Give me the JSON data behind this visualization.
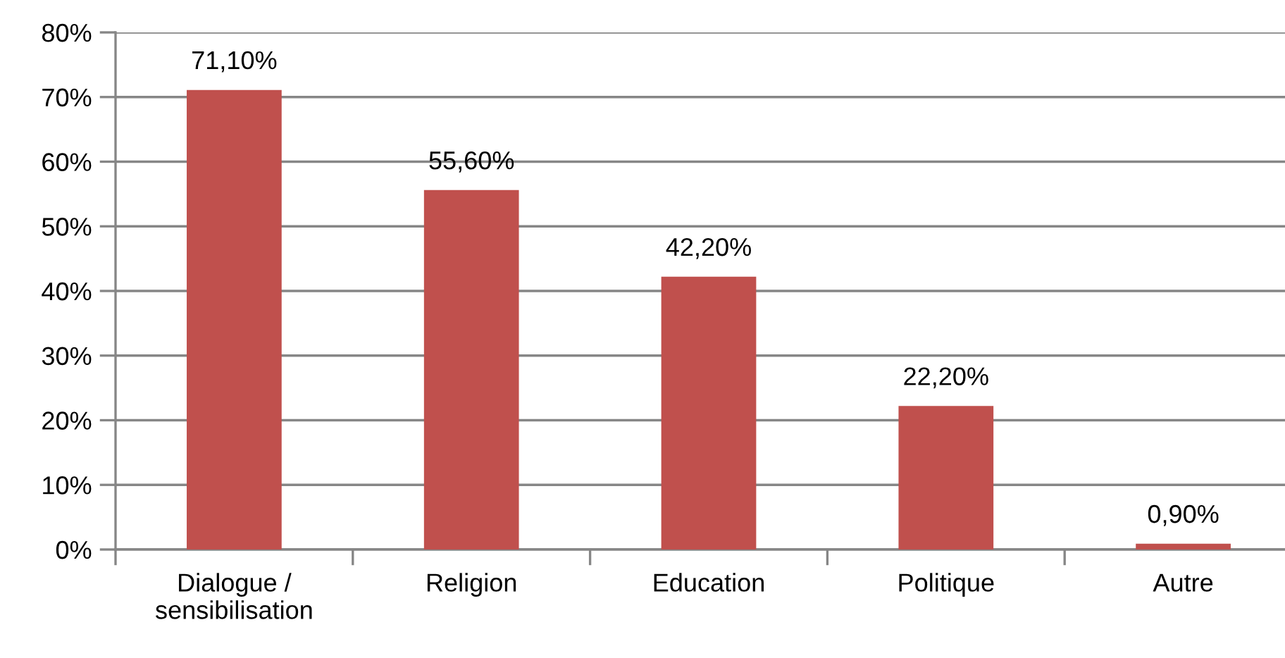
{
  "chart_data": {
    "type": "bar",
    "categories": [
      "Dialogue /\nsensibilisation",
      "Religion",
      "Education",
      "Politique",
      "Autre"
    ],
    "values": [
      71.1,
      55.6,
      42.2,
      22.2,
      0.9
    ],
    "value_labels": [
      "71,10%",
      "55,60%",
      "42,20%",
      "22,20%",
      "0,90%"
    ],
    "color": "#c0504d",
    "ylim": [
      0,
      80
    ],
    "yticks": [
      {
        "value": 0,
        "label": "0%"
      },
      {
        "value": 10,
        "label": "10%"
      },
      {
        "value": 20,
        "label": "20%"
      },
      {
        "value": 30,
        "label": "30%"
      },
      {
        "value": 40,
        "label": "40%"
      },
      {
        "value": 50,
        "label": "50%"
      },
      {
        "value": 60,
        "label": "60%"
      },
      {
        "value": 70,
        "label": "70%"
      },
      {
        "value": 80,
        "label": "80%"
      }
    ],
    "grid": "y"
  }
}
